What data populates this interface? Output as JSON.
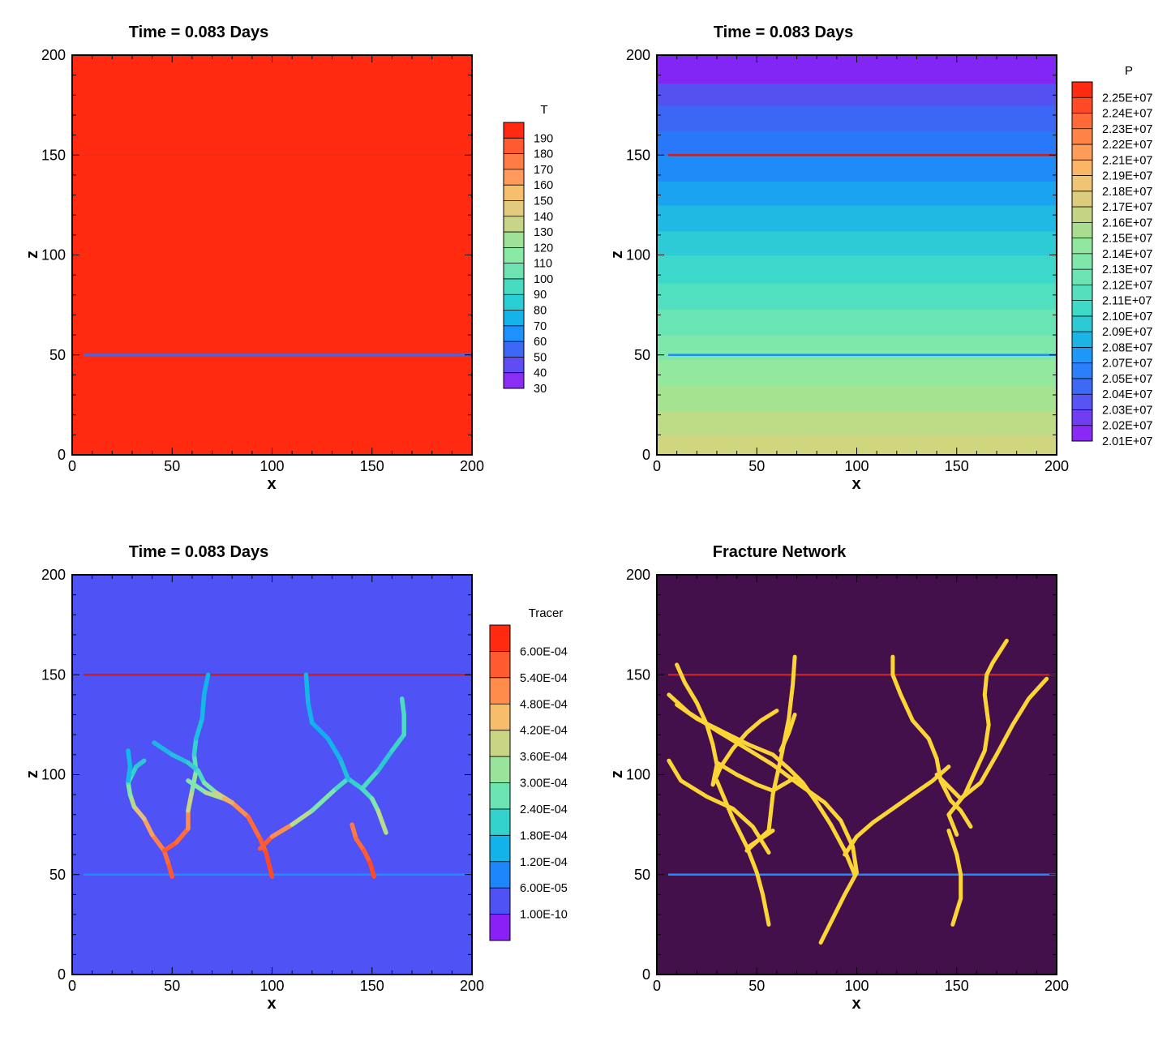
{
  "chart_data": [
    {
      "type": "heatmap",
      "panel": "temperature",
      "title": "Time = 0.083 Days",
      "xlabel": "x",
      "ylabel": "z",
      "xlim": [
        0,
        200
      ],
      "ylim": [
        0,
        200
      ],
      "xticks": [
        "0",
        "50",
        "100",
        "150",
        "200"
      ],
      "yticks": [
        "0",
        "50",
        "100",
        "150",
        "200"
      ],
      "field_value": 195,
      "horizontal_lines": [
        {
          "z": 150,
          "color": "#e2301e"
        },
        {
          "z": 50,
          "color": "#4a66e8"
        }
      ],
      "colorbar": {
        "title": "T",
        "labels": [
          "190",
          "180",
          "170",
          "160",
          "150",
          "140",
          "130",
          "120",
          "110",
          "100",
          "90",
          "80",
          "70",
          "60",
          "50",
          "40",
          "30"
        ],
        "colors": [
          "#ff2a10",
          "#ff5a30",
          "#ff7d44",
          "#fe9a5c",
          "#f6bf6c",
          "#e3cb7d",
          "#c6d586",
          "#9fe197",
          "#88eaa5",
          "#6ee2b0",
          "#46dcc2",
          "#29cfd4",
          "#14b4ea",
          "#1e90ff",
          "#3c68f5",
          "#5f4cf3",
          "#8a2ef5"
        ]
      }
    },
    {
      "type": "heatmap",
      "panel": "pressure",
      "title": "Time = 0.083 Days",
      "xlabel": "x",
      "ylabel": "z",
      "xlim": [
        0,
        200
      ],
      "ylim": [
        0,
        200
      ],
      "xticks": [
        "0",
        "50",
        "100",
        "150",
        "200"
      ],
      "yticks": [
        "0",
        "50",
        "100",
        "150",
        "200"
      ],
      "horizontal_lines": [
        {
          "z": 150,
          "color": "#cc1e1e"
        },
        {
          "z": 50,
          "color": "#1e8cff"
        }
      ],
      "colorbar": {
        "title": "P",
        "labels": [
          "2.25E+07",
          "2.24E+07",
          "2.23E+07",
          "2.22E+07",
          "2.21E+07",
          "2.19E+07",
          "2.18E+07",
          "2.17E+07",
          "2.16E+07",
          "2.15E+07",
          "2.14E+07",
          "2.13E+07",
          "2.12E+07",
          "2.11E+07",
          "2.10E+07",
          "2.09E+07",
          "2.08E+07",
          "2.07E+07",
          "2.05E+07",
          "2.04E+07",
          "2.03E+07",
          "2.02E+07",
          "2.01E+07"
        ],
        "colors": [
          "#ff2a10",
          "#ff4a26",
          "#ff6a38",
          "#ff8446",
          "#fe9c58",
          "#fab665",
          "#efc473",
          "#dccc7e",
          "#c3d585",
          "#a9de90",
          "#91e79f",
          "#7fe8a9",
          "#6ce4b2",
          "#55dfbd",
          "#3fd9c7",
          "#2ccad5",
          "#1cb3e5",
          "#1d98f8",
          "#2a80fb",
          "#3d69f5",
          "#5655f2",
          "#6f3ef3",
          "#8a28f5"
        ]
      },
      "bands": [
        {
          "z0": 0,
          "z1": 10,
          "color": "#cfd67e"
        },
        {
          "z0": 10,
          "z1": 22,
          "color": "#bedb86"
        },
        {
          "z0": 22,
          "z1": 35,
          "color": "#a6e391"
        },
        {
          "z0": 35,
          "z1": 48,
          "color": "#92e89c"
        },
        {
          "z0": 48,
          "z1": 60,
          "color": "#7de8a9"
        },
        {
          "z0": 60,
          "z1": 73,
          "color": "#67e5b4"
        },
        {
          "z0": 73,
          "z1": 86,
          "color": "#50e0c0"
        },
        {
          "z0": 86,
          "z1": 100,
          "color": "#3cd8cb"
        },
        {
          "z0": 100,
          "z1": 112,
          "color": "#2ccbd6"
        },
        {
          "z0": 112,
          "z1": 125,
          "color": "#1fb9e3"
        },
        {
          "z0": 125,
          "z1": 137,
          "color": "#1aa3ef"
        },
        {
          "z0": 137,
          "z1": 150,
          "color": "#1e8bf8"
        },
        {
          "z0": 150,
          "z1": 162,
          "color": "#2a78fa"
        },
        {
          "z0": 162,
          "z1": 175,
          "color": "#3c66f4"
        },
        {
          "z0": 175,
          "z1": 186,
          "color": "#5551f1"
        },
        {
          "z0": 186,
          "z1": 200,
          "color": "#8226f5"
        }
      ]
    },
    {
      "type": "heatmap",
      "panel": "tracer",
      "title": "Time = 0.083 Days",
      "xlabel": "x",
      "ylabel": "z",
      "xlim": [
        0,
        200
      ],
      "ylim": [
        0,
        200
      ],
      "xticks": [
        "0",
        "50",
        "100",
        "150",
        "200"
      ],
      "yticks": [
        "0",
        "50",
        "100",
        "150",
        "200"
      ],
      "background_value": "1.00E-10",
      "horizontal_lines": [
        {
          "z": 150,
          "color": "#cc1e1e"
        },
        {
          "z": 50,
          "color": "#1e8cff"
        }
      ],
      "colorbar": {
        "title": "Tracer",
        "labels": [
          "6.00E-04",
          "5.40E-04",
          "4.80E-04",
          "4.20E-04",
          "3.60E-04",
          "3.00E-04",
          "2.40E-04",
          "1.80E-04",
          "1.20E-04",
          "6.00E-05",
          "1.00E-10"
        ],
        "colors": [
          "#ff2a10",
          "#ff5a30",
          "#ff8c4a",
          "#f7bd6a",
          "#c9d585",
          "#98e49a",
          "#6ce4b2",
          "#33d2cc",
          "#12b2ea",
          "#1e86fb",
          "#4f52f5",
          "#8a20f5"
        ]
      },
      "paths": [
        {
          "points": [
            [
              50,
              49
            ],
            [
              48,
              56
            ],
            [
              46,
              62
            ],
            [
              40,
              70
            ],
            [
              36,
              78
            ],
            [
              31,
              84
            ],
            [
              29,
              90
            ],
            [
              28,
              96
            ],
            [
              30,
              100
            ],
            [
              32,
              104
            ],
            [
              36,
              107
            ]
          ],
          "colors": [
            "#ff5a30",
            "#ff6a3a",
            "#ff8048",
            "#f7a060",
            "#e6c07a",
            "#b0dc90",
            "#7ee8aa",
            "#4cdcc2",
            "#33d2cc",
            "#2ec8d4",
            "#1ab4e8"
          ]
        },
        {
          "points": [
            [
              28,
              97
            ],
            [
              29,
              104
            ],
            [
              28,
              112
            ]
          ],
          "colors": [
            "#1ab4e8",
            "#12b8e6"
          ]
        },
        {
          "points": [
            [
              46,
              62
            ],
            [
              52,
              66
            ],
            [
              58,
              73
            ],
            [
              58,
              82
            ],
            [
              60,
              92
            ],
            [
              62,
              102
            ],
            [
              61,
              110
            ],
            [
              62,
              118
            ],
            [
              65,
              128
            ],
            [
              66,
              140
            ],
            [
              68,
              150
            ]
          ],
          "colors": [
            "#ff5a30",
            "#ff6a38",
            "#ff8c4a",
            "#c9d585",
            "#8ce6a0",
            "#5ae0b8",
            "#33d2cc",
            "#1ec0de",
            "#14b8e8",
            "#12b4ea"
          ]
        },
        {
          "points": [
            [
              41,
              116
            ],
            [
              50,
              110
            ],
            [
              58,
              106
            ],
            [
              63,
              102
            ],
            [
              66,
              96
            ],
            [
              72,
              91
            ],
            [
              80,
              86
            ],
            [
              88,
              79
            ],
            [
              94,
              68
            ],
            [
              97,
              61
            ],
            [
              100,
              49
            ]
          ],
          "colors": [
            "#1eb4e8",
            "#26bee0",
            "#34ccd0",
            "#4cdcc2",
            "#7ee8aa",
            "#d8cc80",
            "#ff8c4a",
            "#ff6a38",
            "#ff5a30",
            "#ff4a26"
          ]
        },
        {
          "points": [
            [
              58,
              97
            ],
            [
              67,
              91
            ],
            [
              76,
              88
            ],
            [
              80,
              86
            ]
          ],
          "colors": [
            "#7ee8aa",
            "#b6dc8c",
            "#f0b064"
          ]
        },
        {
          "points": [
            [
              94,
              63
            ],
            [
              100,
              69
            ],
            [
              110,
              75
            ],
            [
              120,
              82
            ],
            [
              132,
              93
            ],
            [
              138,
              98
            ],
            [
              145,
              93
            ],
            [
              150,
              88
            ],
            [
              153,
              82
            ],
            [
              157,
              71
            ]
          ],
          "colors": [
            "#ff5a30",
            "#ff8c4a",
            "#b6dc8c",
            "#7ee8aa",
            "#4cdcc2",
            "#33d2cc",
            "#4cdcc2",
            "#7ee8aa",
            "#b6dc8c"
          ]
        },
        {
          "points": [
            [
              138,
              98
            ],
            [
              134,
              108
            ],
            [
              128,
              118
            ],
            [
              120,
              126
            ],
            [
              118,
              136
            ],
            [
              117,
              150
            ]
          ],
          "colors": [
            "#1ebedc",
            "#14b4ea",
            "#12aeee",
            "#14b4ea",
            "#14b8e8"
          ]
        },
        {
          "points": [
            [
              145,
              93
            ],
            [
              153,
              102
            ],
            [
              160,
              112
            ],
            [
              166,
              120
            ],
            [
              166,
              130
            ],
            [
              165,
              138
            ]
          ],
          "colors": [
            "#4cdcc2",
            "#2ec8d4",
            "#3cd6c6",
            "#4cdcc2",
            "#4cdcc2"
          ]
        },
        {
          "points": [
            [
              140,
              75
            ],
            [
              142,
              68
            ],
            [
              146,
              62
            ],
            [
              149,
              56
            ],
            [
              151,
              49
            ]
          ],
          "colors": [
            "#ff7a44",
            "#ff6a38",
            "#ff5a30",
            "#ff4a26"
          ]
        }
      ]
    },
    {
      "type": "heatmap",
      "panel": "fractures",
      "title": "Fracture Network",
      "xlabel": "x",
      "ylabel": "z",
      "xlim": [
        0,
        200
      ],
      "ylim": [
        0,
        200
      ],
      "xticks": [
        "0",
        "50",
        "100",
        "150",
        "200"
      ],
      "yticks": [
        "0",
        "50",
        "100",
        "150",
        "200"
      ],
      "background_color": "#44104c",
      "fracture_color": "#fbd535",
      "horizontal_lines": [
        {
          "z": 150,
          "color": "#cc1e1e"
        },
        {
          "z": 50,
          "color": "#1e8cff"
        }
      ],
      "paths": [
        [
          [
            10,
            155
          ],
          [
            14,
            146
          ],
          [
            20,
            136
          ],
          [
            25,
            125
          ],
          [
            28,
            115
          ],
          [
            30,
            105
          ],
          [
            28,
            95
          ]
        ],
        [
          [
            6,
            140
          ],
          [
            16,
            131
          ],
          [
            30,
            122
          ],
          [
            45,
            113
          ],
          [
            58,
            105
          ],
          [
            70,
            96
          ],
          [
            84,
            86
          ],
          [
            92,
            77
          ],
          [
            98,
            64
          ],
          [
            100,
            51
          ],
          [
            94,
            40
          ],
          [
            88,
            28
          ],
          [
            82,
            16
          ]
        ],
        [
          [
            6,
            107
          ],
          [
            12,
            97
          ],
          [
            25,
            89
          ],
          [
            38,
            83
          ],
          [
            48,
            74
          ],
          [
            56,
            61
          ]
        ],
        [
          [
            28,
            95
          ],
          [
            32,
            104
          ],
          [
            38,
            113
          ],
          [
            45,
            121
          ],
          [
            52,
            127
          ],
          [
            60,
            132
          ]
        ],
        [
          [
            30,
            106
          ],
          [
            40,
            100
          ],
          [
            50,
            95
          ],
          [
            58,
            92
          ],
          [
            70,
            99
          ],
          [
            78,
            89
          ]
        ],
        [
          [
            62,
            112
          ],
          [
            66,
            121
          ],
          [
            69,
            130
          ]
        ],
        [
          [
            30,
            97
          ],
          [
            38,
            78
          ],
          [
            45,
            64
          ],
          [
            50,
            51
          ],
          [
            53,
            40
          ],
          [
            56,
            25
          ]
        ],
        [
          [
            45,
            62
          ],
          [
            56,
            72
          ],
          [
            58,
            90
          ],
          [
            62,
            108
          ],
          [
            64,
            118
          ],
          [
            66,
            128
          ],
          [
            68,
            145
          ],
          [
            69,
            159
          ]
        ],
        [
          [
            10,
            135
          ],
          [
            20,
            128
          ],
          [
            32,
            122
          ],
          [
            46,
            115
          ],
          [
            58,
            110
          ],
          [
            66,
            103
          ],
          [
            73,
            96
          ],
          [
            80,
            86
          ],
          [
            87,
            75
          ],
          [
            94,
            62
          ],
          [
            99,
            50
          ]
        ],
        [
          [
            46,
            64
          ],
          [
            58,
            72
          ]
        ],
        [
          [
            94,
            60
          ],
          [
            100,
            69
          ],
          [
            108,
            76
          ],
          [
            118,
            83
          ],
          [
            128,
            90
          ],
          [
            138,
            97
          ],
          [
            146,
            104
          ]
        ],
        [
          [
            118,
            159
          ],
          [
            118,
            150
          ],
          [
            122,
            140
          ],
          [
            128,
            127
          ],
          [
            136,
            118
          ],
          [
            140,
            108
          ],
          [
            142,
            97
          ],
          [
            147,
            87
          ],
          [
            152,
            82
          ],
          [
            157,
            74
          ]
        ],
        [
          [
            140,
            100
          ],
          [
            148,
            92
          ],
          [
            152,
            88
          ],
          [
            162,
            96
          ],
          [
            170,
            110
          ],
          [
            178,
            125
          ],
          [
            186,
            138
          ],
          [
            195,
            148
          ]
        ],
        [
          [
            150,
            70
          ],
          [
            146,
            80
          ],
          [
            154,
            90
          ],
          [
            164,
            112
          ],
          [
            166,
            125
          ],
          [
            164,
            140
          ],
          [
            165,
            150
          ],
          [
            168,
            156
          ],
          [
            175,
            167
          ]
        ],
        [
          [
            146,
            72
          ],
          [
            150,
            60
          ],
          [
            152,
            50
          ],
          [
            152,
            38
          ],
          [
            148,
            25
          ]
        ]
      ]
    }
  ]
}
